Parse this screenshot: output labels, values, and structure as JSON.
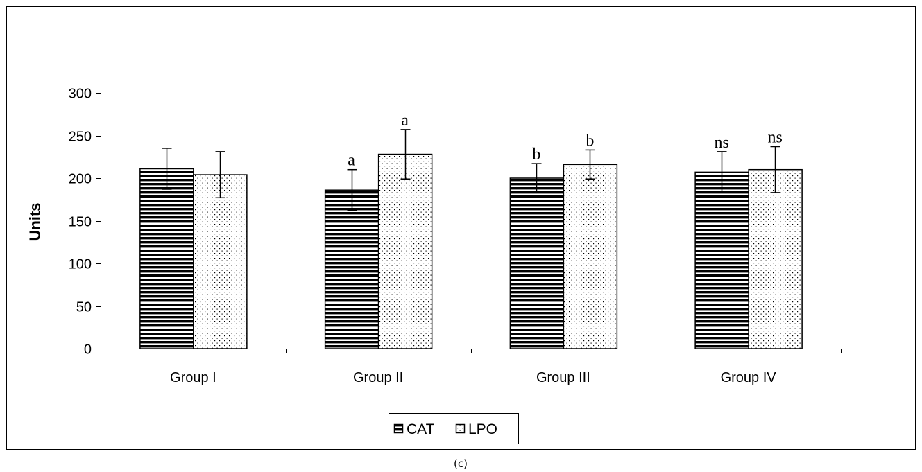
{
  "chart_data": {
    "type": "bar",
    "categories": [
      "Group I",
      "Group II",
      "Group III",
      "Group IV"
    ],
    "series": [
      {
        "name": "CAT",
        "pattern": "horizontal-stripes",
        "values": [
          211,
          186,
          200,
          207
        ],
        "errors": [
          24,
          24,
          17,
          24
        ],
        "annotations": [
          "",
          "a",
          "b",
          "ns"
        ]
      },
      {
        "name": "LPO",
        "pattern": "dots",
        "values": [
          204,
          228,
          216,
          210
        ],
        "errors": [
          27,
          29,
          17,
          27
        ],
        "annotations": [
          "",
          "a",
          "b",
          "ns"
        ]
      }
    ],
    "ylabel": "Units",
    "xlabel": "",
    "ylim": [
      0,
      300
    ],
    "yticks": [
      0,
      50,
      100,
      150,
      200,
      250,
      300
    ],
    "grid": false,
    "legend_position": "bottom"
  },
  "caption": "(c)",
  "colors": {
    "ink": "#000000",
    "background": "#ffffff"
  }
}
